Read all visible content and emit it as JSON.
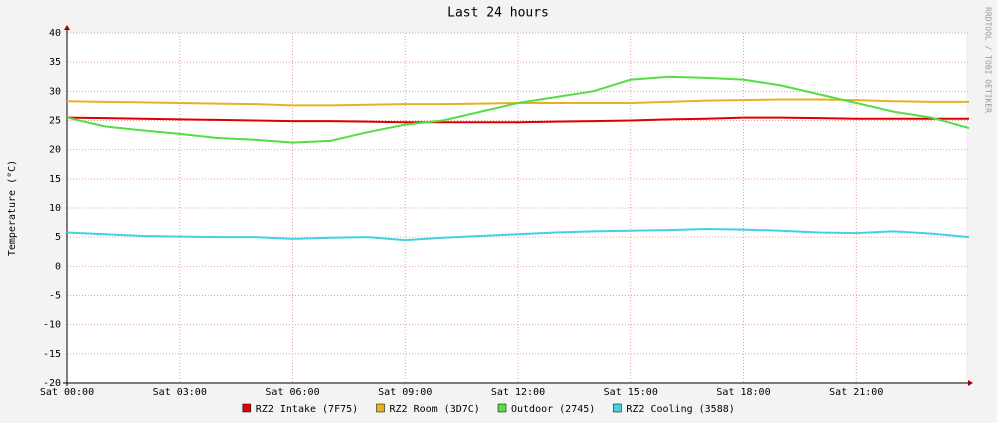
{
  "chart_data": {
    "type": "line",
    "title": "Last 24 hours",
    "ylabel": "Temperature (°C)",
    "watermark": "RRDTOOL / TOBI OETIKER",
    "x": [
      0,
      1,
      2,
      3,
      4,
      5,
      6,
      7,
      8,
      9,
      10,
      11,
      12,
      13,
      14,
      15,
      16,
      17,
      18,
      19,
      20,
      21,
      22,
      23,
      24
    ],
    "xlim": [
      0,
      24
    ],
    "xticks": [
      {
        "value": 0,
        "label": "Sat 00:00"
      },
      {
        "value": 3,
        "label": "Sat 03:00"
      },
      {
        "value": 6,
        "label": "Sat 06:00"
      },
      {
        "value": 9,
        "label": "Sat 09:00"
      },
      {
        "value": 12,
        "label": "Sat 12:00"
      },
      {
        "value": 15,
        "label": "Sat 15:00"
      },
      {
        "value": 18,
        "label": "Sat 18:00"
      },
      {
        "value": 21,
        "label": "Sat 21:00"
      }
    ],
    "ylim": [
      -20,
      40
    ],
    "yticks": [
      -20,
      -15,
      -10,
      -5,
      0,
      5,
      10,
      15,
      20,
      25,
      30,
      35,
      40
    ],
    "grid": true,
    "series": [
      {
        "name": "RZ2 Intake (7F75)",
        "color": "#dd0000",
        "values": [
          25.5,
          25.4,
          25.3,
          25.2,
          25.1,
          25.0,
          24.9,
          24.9,
          24.8,
          24.7,
          24.7,
          24.7,
          24.7,
          24.8,
          24.9,
          25.0,
          25.2,
          25.3,
          25.5,
          25.5,
          25.4,
          25.3,
          25.3,
          25.3,
          25.3
        ]
      },
      {
        "name": "RZ2 Room (3D7C)",
        "color": "#e8b020",
        "values": [
          28.3,
          28.2,
          28.1,
          28.0,
          27.9,
          27.8,
          27.6,
          27.6,
          27.7,
          27.8,
          27.8,
          27.9,
          28.0,
          28.0,
          28.0,
          28.0,
          28.2,
          28.4,
          28.5,
          28.6,
          28.6,
          28.5,
          28.3,
          28.2,
          28.2
        ]
      },
      {
        "name": "Outdoor (2745)",
        "color": "#55dd44",
        "values": [
          25.5,
          24.0,
          23.3,
          22.7,
          22.0,
          21.7,
          21.2,
          21.5,
          23.0,
          24.3,
          25.0,
          26.5,
          28.0,
          29.0,
          30.0,
          32.0,
          32.5,
          32.3,
          32.0,
          31.0,
          29.5,
          28.0,
          26.5,
          25.5,
          23.7
        ]
      },
      {
        "name": "RZ2 Cooling (3588)",
        "color": "#44d0e0",
        "values": [
          5.8,
          5.5,
          5.2,
          5.1,
          5.0,
          5.0,
          4.7,
          4.9,
          5.0,
          4.5,
          4.9,
          5.2,
          5.5,
          5.8,
          6.0,
          6.1,
          6.2,
          6.4,
          6.3,
          6.1,
          5.8,
          5.7,
          6.0,
          5.6,
          5.0
        ]
      }
    ]
  }
}
